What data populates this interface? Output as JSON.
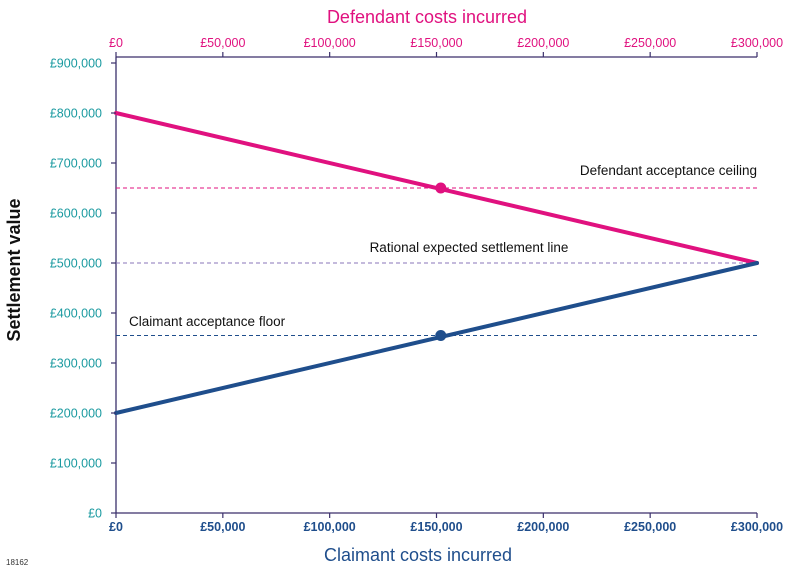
{
  "figure_id": "18162",
  "chart_data": {
    "type": "line",
    "xlabel": "Claimant costs incurred",
    "x2label": "Defendant costs incurred",
    "ylabel": "Settlement value",
    "xlim": [
      0,
      300000
    ],
    "ylim": [
      0,
      900000
    ],
    "x_ticks": [
      0,
      50000,
      100000,
      150000,
      200000,
      250000,
      300000
    ],
    "x_tick_labels": [
      "£0",
      "£50,000",
      "£100,000",
      "£150,000",
      "£200,000",
      "£250,000",
      "£300,000"
    ],
    "y_ticks": [
      0,
      100000,
      200000,
      300000,
      400000,
      500000,
      600000,
      700000,
      800000,
      900000
    ],
    "y_tick_labels": [
      "£0",
      "£100,000",
      "£200,000",
      "£300,000",
      "£400,000",
      "£500,000",
      "£600,000",
      "£700,000",
      "£800,000",
      "£900,000"
    ],
    "grid": false,
    "series": [
      {
        "key": "defendant",
        "color": "#e0117f",
        "x": [
          0,
          300000
        ],
        "y": [
          800000,
          500000
        ]
      },
      {
        "key": "claimant",
        "color": "#1f4e8c",
        "x": [
          0,
          300000
        ],
        "y": [
          200000,
          500000
        ]
      }
    ],
    "reference_lines": [
      {
        "key": "ceiling",
        "label": "Defendant acceptance ceiling",
        "y": 650000,
        "color": "#e0117f",
        "style": "dashed"
      },
      {
        "key": "rational",
        "label": "Rational expected settlement line",
        "y": 500000,
        "color": "#8a74b8",
        "style": "dashed"
      },
      {
        "key": "floor",
        "label": "Claimant acceptance floor",
        "y": 355000,
        "color": "#1f4e8c",
        "style": "dashed"
      }
    ],
    "points": [
      {
        "key": "ceiling-point",
        "x": 152000,
        "y": 650000,
        "color": "#e0117f"
      },
      {
        "key": "floor-point",
        "x": 152000,
        "y": 355000,
        "color": "#1f4e8c"
      }
    ]
  }
}
